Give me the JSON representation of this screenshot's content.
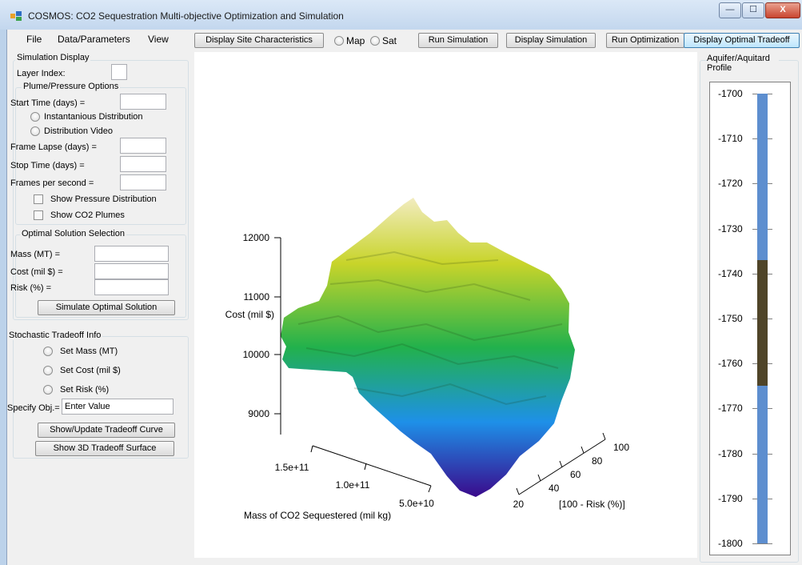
{
  "window": {
    "title": "COSMOS:  CO2 Sequestration Multi-objective Optimization and Simulation",
    "minimize_glyph": "—",
    "maximize_glyph": "☐",
    "close_glyph": "X"
  },
  "menu": [
    "File",
    "Data/Parameters",
    "View"
  ],
  "toolbar": {
    "display_site": "Display Site Characteristics",
    "map": "Map",
    "sat": "Sat",
    "run_simulation": "Run Simulation",
    "display_simulation": "Display Simulation",
    "run_optimization": "Run Optimization",
    "display_tradeoff": "Display Optimal Tradeoff"
  },
  "sim_display": {
    "title": "Simulation Display",
    "layer_index_label": "Layer Index:",
    "layer_index_value": ""
  },
  "plume": {
    "title": "Plume/Pressure Options",
    "start_time_label": "Start Time (days) =",
    "instant_label": "Instantanious Distribution",
    "video_label": "Distribution Video",
    "frame_lapse_label": "Frame Lapse (days) =",
    "stop_time_label": "Stop Time (days) =",
    "fps_label": "Frames per second =",
    "show_pressure_label": "Show Pressure Distribution",
    "show_plumes_label": "Show CO2 Plumes"
  },
  "optimal": {
    "title": "Optimal Solution Selection",
    "mass_label": "Mass (MT) =",
    "cost_label": "Cost (mil $) =",
    "risk_label": "Risk (%) =",
    "simulate_button": "Simulate Optimal Solution"
  },
  "stochastic": {
    "title": "Stochastic Tradeoff Info",
    "set_mass": "Set Mass (MT)",
    "set_cost": "Set Cost (mil $)",
    "set_risk": "Set Risk (%)",
    "specify_label": "Specify Obj.=",
    "specify_value": "Enter Value",
    "show_curve_button": "Show/Update Tradeoff Curve",
    "show_surface_button": "Show 3D Tradeoff Surface"
  },
  "plot3d": {
    "cost_ticks": [
      "12000",
      "11000",
      "10000",
      "9000"
    ],
    "cost_label": "Cost (mil $)",
    "mass_ticks": [
      "1.5e+11",
      "1.0e+11",
      "5.0e+10"
    ],
    "mass_label": "Mass of CO2 Sequestered (mil kg)",
    "risk_ticks": [
      "100",
      "80",
      "60",
      "40",
      "20"
    ],
    "risk_label": "[100 - Risk (%)]",
    "colors": {
      "low": "#3a0a8c",
      "mid_low": "#1e90e8",
      "mid": "#22b14c",
      "mid_high": "#c8d42a",
      "high": "#f2ecc0"
    }
  },
  "profile": {
    "title": "Aquifer/Aquitard Profile",
    "ticks": [
      "-1700",
      "-1710",
      "-1720",
      "-1730",
      "-1740",
      "-1750",
      "-1760",
      "-1770",
      "-1780",
      "-1790",
      "-1800"
    ],
    "aquifer_color": "#5d8ecf",
    "aquitard_color": "#4f4428",
    "aquitard_top": -1737,
    "aquitard_bottom": -1765
  }
}
